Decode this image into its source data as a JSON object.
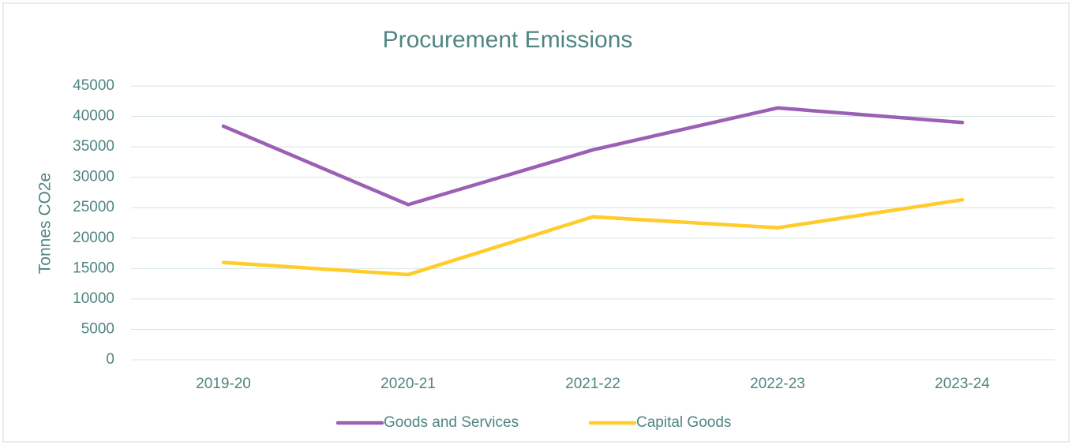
{
  "chart_data": {
    "type": "line",
    "title": "Procurement Emissions",
    "y_label": "Tonnes CO2e",
    "categories": [
      "2019-20",
      "2020-21",
      "2021-22",
      "2022-23",
      "2023-24"
    ],
    "series": [
      {
        "name": "Goods and Services",
        "color": "#9b5fb5",
        "values": [
          38400,
          25500,
          34500,
          41400,
          39000
        ]
      },
      {
        "name": "Capital Goods",
        "color": "#ffcc29",
        "values": [
          16000,
          14000,
          23500,
          21700,
          26300
        ]
      }
    ],
    "ylim": [
      0,
      45000
    ],
    "yticks": [
      0,
      5000,
      10000,
      15000,
      20000,
      25000,
      30000,
      35000,
      40000,
      45000
    ],
    "grid": true,
    "legend": "bottom"
  }
}
